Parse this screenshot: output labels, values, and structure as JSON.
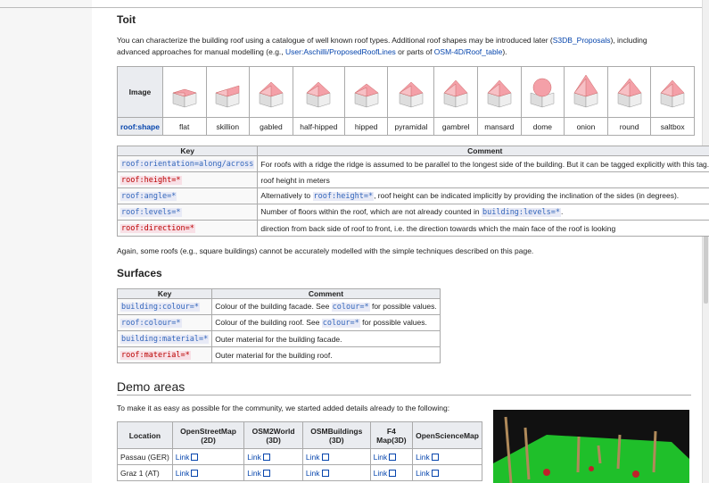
{
  "section_title": "Toit",
  "intro": [
    "You can characterize the building roof using a catalogue of well known roof types. Additional roof shapes may be introduced later (",
    "S3DB_Proposals",
    "), including advanced approaches for manual modelling (e.g., ",
    "User:Aschilli/ProposedRoofLines",
    " or parts of ",
    "OSM-4D/Roof_table",
    ")."
  ],
  "roof_shapes": {
    "header_image": "Image",
    "header_shape": "roof:shape",
    "shapes": [
      "flat",
      "skillion",
      "gabled",
      "half-hipped",
      "hipped",
      "pyramidal",
      "gambrel",
      "mansard",
      "dome",
      "onion",
      "round",
      "saltbox"
    ]
  },
  "roof_keys": {
    "headers": [
      "Key",
      "Comment"
    ],
    "rows": [
      {
        "key": "roof:orientation=along/across",
        "comment": [
          "For roofs with a ridge the ridge is assumed to be parallel to the longest side of the building. But it can be tagged explicitly with this tag."
        ]
      },
      {
        "key": "roof:height=*",
        "comment": [
          "roof height in meters"
        ]
      },
      {
        "key": "roof:angle=*",
        "comment": [
          "Alternatively to ",
          "roof:height=*",
          ", roof height can be indicated implicitly by providing the inclination of the sides (in degrees)."
        ]
      },
      {
        "key": "roof:levels=*",
        "comment": [
          "Number of floors within the roof, which are not already counted in ",
          "building:levels=*",
          "."
        ]
      },
      {
        "key": "roof:direction=*",
        "comment": [
          "direction from back side of roof to front, i.e. the direction towards which the main face of the roof is looking"
        ]
      }
    ]
  },
  "note": "Again, some roofs (e.g., square buildings) cannot be accurately modelled with the simple techniques described on this page.",
  "surfaces": {
    "title": "Surfaces",
    "headers": [
      "Key",
      "Comment"
    ],
    "rows": [
      {
        "key": "building:colour=*",
        "comment": [
          "Colour of the building facade. See ",
          "colour=*",
          " for possible values."
        ]
      },
      {
        "key": "roof:colour=*",
        "comment": [
          "Colour of the building roof. See ",
          "colour=*",
          " for possible values."
        ]
      },
      {
        "key": "building:material=*",
        "comment": [
          "Outer material for the building facade."
        ]
      },
      {
        "key": "roof:material=*",
        "comment": [
          "Outer material for the building roof."
        ]
      }
    ]
  },
  "demo": {
    "title": "Demo areas",
    "intro": "To make it as easy as possible for the community, we started added details already to the following:",
    "headers": [
      "Location",
      "OpenStreetMap (2D)",
      "OSM2World (3D)",
      "OSMBuildings (3D)",
      "F4 Map(3D)",
      "OpenScienceMap"
    ],
    "rows": [
      [
        "Passau (GER)",
        "Link",
        "Link",
        "Link",
        "Link",
        "Link"
      ],
      [
        "Graz 1 (AT)",
        "Link",
        "Link",
        "Link",
        "Link",
        "Link"
      ]
    ]
  }
}
